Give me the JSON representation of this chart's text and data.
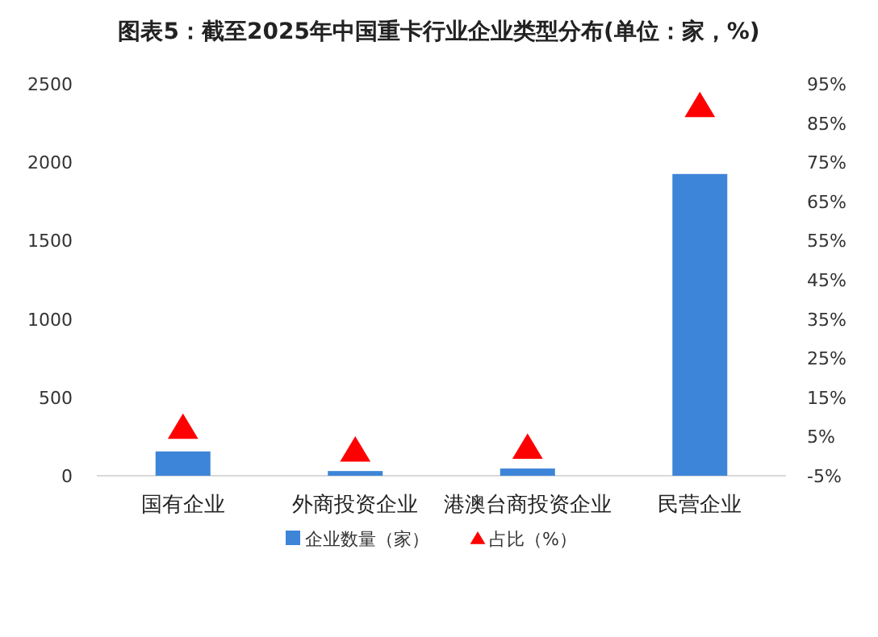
{
  "chart_data": {
    "type": "bar",
    "title": "图表5：截至2025年中国重卡行业企业类型分布(单位：家，%)",
    "categories": [
      "国有企业",
      "外商投资企业",
      "港澳台商投资企业",
      "民营企业"
    ],
    "series": [
      {
        "name": "企业数量（家）",
        "color": "#3d85d8",
        "values": [
          155,
          30,
          46,
          1925
        ]
      },
      {
        "name": "占比（%）",
        "type": "scatter",
        "axis": "y2",
        "color": "#ff0000",
        "values": [
          7.2,
          1.4,
          2.1,
          89.3
        ]
      }
    ],
    "ylim": [
      0,
      2500
    ],
    "yticks": [
      0,
      500,
      1000,
      1500,
      2000,
      2500
    ],
    "y2lim": [
      -5,
      95
    ],
    "y2ticks": [
      {
        "value": -5,
        "label": "-5%"
      },
      {
        "value": 5,
        "label": "5%"
      },
      {
        "value": 15,
        "label": "15%"
      },
      {
        "value": 25,
        "label": "25%"
      },
      {
        "value": 35,
        "label": "35%"
      },
      {
        "value": 45,
        "label": "45%"
      },
      {
        "value": 55,
        "label": "55%"
      },
      {
        "value": 65,
        "label": "65%"
      },
      {
        "value": 75,
        "label": "75%"
      },
      {
        "value": 85,
        "label": "85%"
      },
      {
        "value": 95,
        "label": "95%"
      }
    ],
    "marker": "triangle",
    "legend": "bottom",
    "grid": false
  }
}
